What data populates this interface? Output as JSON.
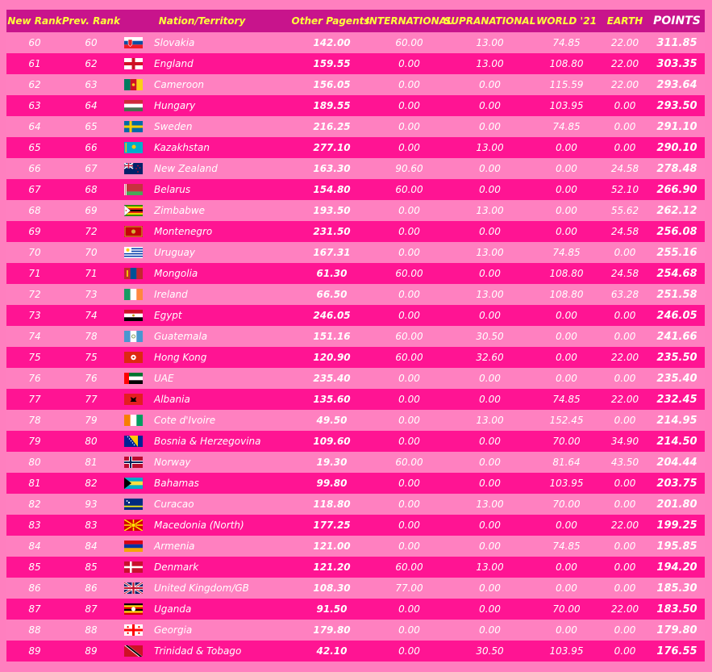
{
  "headers": {
    "new_rank": "New Rank",
    "prev_rank": "Prev. Rank",
    "nation": "Nation/Territory",
    "other": "Other Pagents",
    "intl": "INTERNATIONAL",
    "supra": "SUPRANATIONAL",
    "world": "WORLD '21",
    "earth": "EARTH",
    "points": "POINTS"
  },
  "rows": [
    {
      "rank": "60",
      "prev": "60",
      "nation": "Slovakia",
      "other": "142.00",
      "intl": "60.00",
      "supra": "13.00",
      "world": "74.85",
      "earth": "22.00",
      "points": "311.85",
      "flag": "slovakia-flag-icon"
    },
    {
      "rank": "61",
      "prev": "62",
      "nation": "England",
      "other": "159.55",
      "intl": "0.00",
      "supra": "13.00",
      "world": "108.80",
      "earth": "22.00",
      "points": "303.35",
      "flag": "england-flag-icon"
    },
    {
      "rank": "62",
      "prev": "63",
      "nation": "Cameroon",
      "other": "156.05",
      "intl": "0.00",
      "supra": "0.00",
      "world": "115.59",
      "earth": "22.00",
      "points": "293.64",
      "flag": "cameroon-flag-icon"
    },
    {
      "rank": "63",
      "prev": "64",
      "nation": "Hungary",
      "other": "189.55",
      "intl": "0.00",
      "supra": "0.00",
      "world": "103.95",
      "earth": "0.00",
      "points": "293.50",
      "flag": "hungary-flag-icon"
    },
    {
      "rank": "64",
      "prev": "65",
      "nation": "Sweden",
      "other": "216.25",
      "intl": "0.00",
      "supra": "0.00",
      "world": "74.85",
      "earth": "0.00",
      "points": "291.10",
      "flag": "sweden-flag-icon"
    },
    {
      "rank": "65",
      "prev": "66",
      "nation": "Kazakhstan",
      "other": "277.10",
      "intl": "0.00",
      "supra": "13.00",
      "world": "0.00",
      "earth": "0.00",
      "points": "290.10",
      "flag": "kazakhstan-flag-icon"
    },
    {
      "rank": "66",
      "prev": "67",
      "nation": "New Zealand",
      "other": "163.30",
      "intl": "90.60",
      "supra": "0.00",
      "world": "0.00",
      "earth": "24.58",
      "points": "278.48",
      "flag": "new-zealand-flag-icon"
    },
    {
      "rank": "67",
      "prev": "68",
      "nation": "Belarus",
      "other": "154.80",
      "intl": "60.00",
      "supra": "0.00",
      "world": "0.00",
      "earth": "52.10",
      "points": "266.90",
      "flag": "belarus-flag-icon"
    },
    {
      "rank": "68",
      "prev": "69",
      "nation": "Zimbabwe",
      "other": "193.50",
      "intl": "0.00",
      "supra": "13.00",
      "world": "0.00",
      "earth": "55.62",
      "points": "262.12",
      "flag": "zimbabwe-flag-icon"
    },
    {
      "rank": "69",
      "prev": "72",
      "nation": "Montenegro",
      "other": "231.50",
      "intl": "0.00",
      "supra": "0.00",
      "world": "0.00",
      "earth": "24.58",
      "points": "256.08",
      "flag": "montenegro-flag-icon"
    },
    {
      "rank": "70",
      "prev": "70",
      "nation": "Uruguay",
      "other": "167.31",
      "intl": "0.00",
      "supra": "13.00",
      "world": "74.85",
      "earth": "0.00",
      "points": "255.16",
      "flag": "uruguay-flag-icon"
    },
    {
      "rank": "71",
      "prev": "71",
      "nation": "Mongolia",
      "other": "61.30",
      "intl": "60.00",
      "supra": "0.00",
      "world": "108.80",
      "earth": "24.58",
      "points": "254.68",
      "flag": "mongolia-flag-icon"
    },
    {
      "rank": "72",
      "prev": "73",
      "nation": "Ireland",
      "other": "66.50",
      "intl": "0.00",
      "supra": "13.00",
      "world": "108.80",
      "earth": "63.28",
      "points": "251.58",
      "flag": "ireland-flag-icon"
    },
    {
      "rank": "73",
      "prev": "74",
      "nation": "Egypt",
      "other": "246.05",
      "intl": "0.00",
      "supra": "0.00",
      "world": "0.00",
      "earth": "0.00",
      "points": "246.05",
      "flag": "egypt-flag-icon"
    },
    {
      "rank": "74",
      "prev": "78",
      "nation": "Guatemala",
      "other": "151.16",
      "intl": "60.00",
      "supra": "30.50",
      "world": "0.00",
      "earth": "0.00",
      "points": "241.66",
      "flag": "guatemala-flag-icon"
    },
    {
      "rank": "75",
      "prev": "75",
      "nation": "Hong Kong",
      "other": "120.90",
      "intl": "60.00",
      "supra": "32.60",
      "world": "0.00",
      "earth": "22.00",
      "points": "235.50",
      "flag": "hong-kong-flag-icon"
    },
    {
      "rank": "76",
      "prev": "76",
      "nation": "UAE",
      "other": "235.40",
      "intl": "0.00",
      "supra": "0.00",
      "world": "0.00",
      "earth": "0.00",
      "points": "235.40",
      "flag": "uae-flag-icon"
    },
    {
      "rank": "77",
      "prev": "77",
      "nation": "Albania",
      "other": "135.60",
      "intl": "0.00",
      "supra": "0.00",
      "world": "74.85",
      "earth": "22.00",
      "points": "232.45",
      "flag": "albania-flag-icon"
    },
    {
      "rank": "78",
      "prev": "79",
      "nation": "Cote d'Ivoire",
      "other": "49.50",
      "intl": "0.00",
      "supra": "13.00",
      "world": "152.45",
      "earth": "0.00",
      "points": "214.95",
      "flag": "cote-divoire-flag-icon"
    },
    {
      "rank": "79",
      "prev": "80",
      "nation": "Bosnia & Herzegovina",
      "other": "109.60",
      "intl": "0.00",
      "supra": "0.00",
      "world": "70.00",
      "earth": "34.90",
      "points": "214.50",
      "flag": "bosnia-flag-icon"
    },
    {
      "rank": "80",
      "prev": "81",
      "nation": "Norway",
      "other": "19.30",
      "intl": "60.00",
      "supra": "0.00",
      "world": "81.64",
      "earth": "43.50",
      "points": "204.44",
      "flag": "norway-flag-icon"
    },
    {
      "rank": "81",
      "prev": "82",
      "nation": "Bahamas",
      "other": "99.80",
      "intl": "0.00",
      "supra": "0.00",
      "world": "103.95",
      "earth": "0.00",
      "points": "203.75",
      "flag": "bahamas-flag-icon"
    },
    {
      "rank": "82",
      "prev": "93",
      "nation": "Curacao",
      "other": "118.80",
      "intl": "0.00",
      "supra": "13.00",
      "world": "70.00",
      "earth": "0.00",
      "points": "201.80",
      "flag": "curacao-flag-icon"
    },
    {
      "rank": "83",
      "prev": "83",
      "nation": "Macedonia (North)",
      "other": "177.25",
      "intl": "0.00",
      "supra": "0.00",
      "world": "0.00",
      "earth": "22.00",
      "points": "199.25",
      "flag": "north-macedonia-flag-icon"
    },
    {
      "rank": "84",
      "prev": "84",
      "nation": "Armenia",
      "other": "121.00",
      "intl": "0.00",
      "supra": "0.00",
      "world": "74.85",
      "earth": "0.00",
      "points": "195.85",
      "flag": "armenia-flag-icon"
    },
    {
      "rank": "85",
      "prev": "85",
      "nation": "Denmark",
      "other": "121.20",
      "intl": "60.00",
      "supra": "13.00",
      "world": "0.00",
      "earth": "0.00",
      "points": "194.20",
      "flag": "denmark-flag-icon"
    },
    {
      "rank": "86",
      "prev": "86",
      "nation": "United Kingdom/GB",
      "other": "108.30",
      "intl": "77.00",
      "supra": "0.00",
      "world": "0.00",
      "earth": "0.00",
      "points": "185.30",
      "flag": "united-kingdom-flag-icon"
    },
    {
      "rank": "87",
      "prev": "87",
      "nation": "Uganda",
      "other": "91.50",
      "intl": "0.00",
      "supra": "0.00",
      "world": "70.00",
      "earth": "22.00",
      "points": "183.50",
      "flag": "uganda-flag-icon"
    },
    {
      "rank": "88",
      "prev": "88",
      "nation": "Georgia",
      "other": "179.80",
      "intl": "0.00",
      "supra": "0.00",
      "world": "0.00",
      "earth": "0.00",
      "points": "179.80",
      "flag": "georgia-flag-icon"
    },
    {
      "rank": "89",
      "prev": "89",
      "nation": "Trinidad & Tobago",
      "other": "42.10",
      "intl": "0.00",
      "supra": "30.50",
      "world": "103.95",
      "earth": "0.00",
      "points": "176.55",
      "flag": "trinidad-tobago-flag-icon"
    }
  ],
  "colors": {
    "page_bg": "#ff7fbf",
    "header_bg": "#c8148c",
    "row_dark": "#ff1493",
    "row_light": "#ff80c0",
    "header_text": "#ffff3c",
    "text": "#ffffff"
  }
}
